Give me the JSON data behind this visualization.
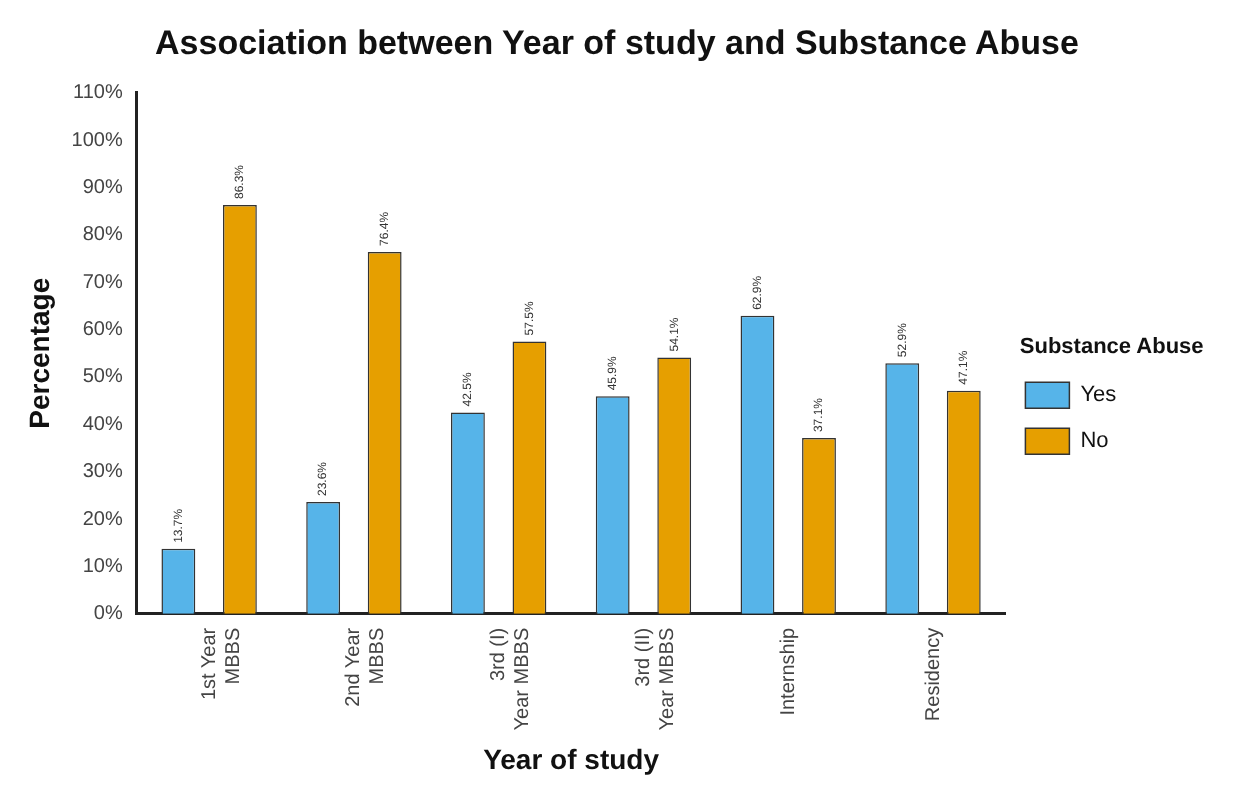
{
  "chart_data": {
    "type": "bar",
    "title": "Association between Year of study and Substance Abuse",
    "xlabel": "Year of study",
    "ylabel": "Percentage",
    "legend_title": "Substance Abuse",
    "categories": [
      "1st Year\nMBBS",
      "2nd Year\nMBBS",
      "3rd (I)\nYear MBBS",
      "3rd (II)\nYear MBBS",
      "Internship",
      "Residency"
    ],
    "series": [
      {
        "name": "Yes",
        "color": "#56b4e9",
        "values": [
          13.7,
          23.6,
          42.5,
          45.9,
          62.9,
          52.9
        ],
        "value_labels": [
          "13.7%",
          "23.6%",
          "42.5%",
          "45.9%",
          "62.9%",
          "52.9%"
        ]
      },
      {
        "name": "No",
        "color": "#e69f00",
        "values": [
          86.3,
          76.4,
          57.5,
          54.1,
          37.1,
          47.1
        ],
        "value_labels": [
          "86.3%",
          "76.4%",
          "57.5%",
          "54.1%",
          "37.1%",
          "47.1%"
        ]
      }
    ],
    "ylim": [
      0,
      110
    ],
    "yticks": [
      {
        "value": 0,
        "label": "0%"
      },
      {
        "value": 10,
        "label": "10%"
      },
      {
        "value": 20,
        "label": "20%"
      },
      {
        "value": 30,
        "label": "30%"
      },
      {
        "value": 40,
        "label": "40%"
      },
      {
        "value": 50,
        "label": "50%"
      },
      {
        "value": 60,
        "label": "60%"
      },
      {
        "value": 70,
        "label": "70%"
      },
      {
        "value": 80,
        "label": "80%"
      },
      {
        "value": 90,
        "label": "90%"
      },
      {
        "value": 100,
        "label": "100%"
      },
      {
        "value": 110,
        "label": "110%"
      }
    ],
    "grid": false,
    "legend": "right"
  }
}
